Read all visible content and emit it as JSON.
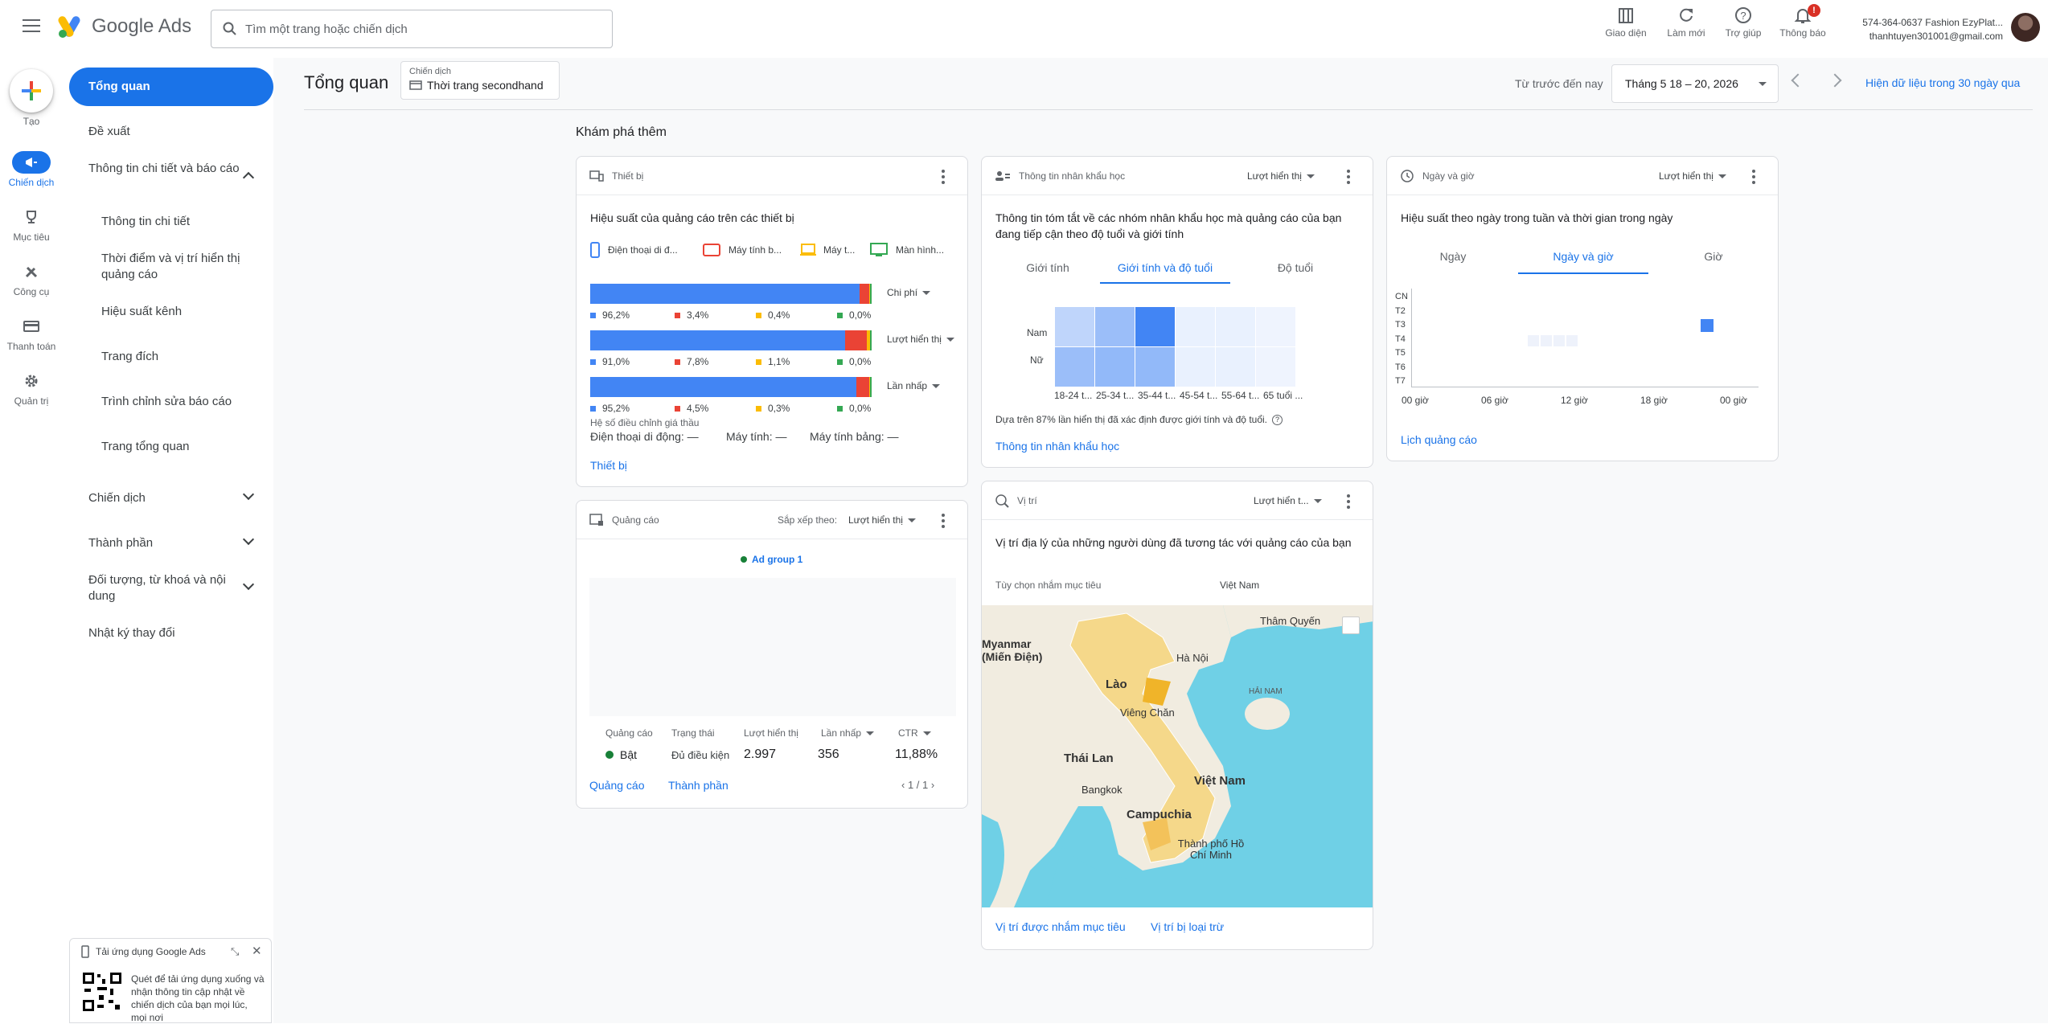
{
  "header": {
    "app_name": "Google Ads",
    "search_placeholder": "Tìm một trang hoặc chiến dịch",
    "actions": [
      {
        "label": "Giao diện",
        "icon": "appearance-icon"
      },
      {
        "label": "Làm mới",
        "icon": "refresh-icon"
      },
      {
        "label": "Trợ giúp",
        "icon": "help-icon"
      },
      {
        "label": "Thông báo",
        "icon": "bell-icon"
      }
    ],
    "notification_badge": "!",
    "account_line1": "574-364-0637 Fashion EzyPlat...",
    "account_line2": "thanhtuyen301001@gmail.com"
  },
  "rail": {
    "create": "Tạo",
    "items": [
      "Chiến dịch",
      "Mục tiêu",
      "Công cụ",
      "Thanh toán",
      "Quản trị"
    ]
  },
  "nav": {
    "overview": "Tổng quan",
    "recommendations": "Đề xuất",
    "insights_group": "Thông tin chi tiết và báo cáo",
    "insights_items": [
      "Thông tin chi tiết",
      "Thời điểm và vị trí hiển thị quảng cáo",
      "Hiệu suất kênh",
      "Trang đích",
      "Trình chỉnh sửa báo cáo",
      "Trang tổng quan"
    ],
    "campaigns": "Chiến dịch",
    "assets": "Thành phần",
    "audiences": "Đối tượng, từ khoá và nội dung",
    "change_history": "Nhật ký thay đổi"
  },
  "page": {
    "title": "Tổng quan",
    "campaign_label": "Chiến dịch",
    "campaign_value": "Thời trang secondhand",
    "date_label": "Từ trước đến nay",
    "date_value": "Tháng 5 18 – 20, 2026",
    "last30": "Hiện dữ liệu trong 30 ngày qua",
    "explore": "Khám phá thêm"
  },
  "device": {
    "title": "Thiết bị",
    "subtitle": "Hiệu suất của quảng cáo trên các thiết bị",
    "legend": [
      "Điện thoại di đ...",
      "Máy tính b...",
      "Máy t...",
      "Màn hình..."
    ],
    "colors": [
      "#4285f4",
      "#ea4335",
      "#fbbc04",
      "#34a853"
    ],
    "metrics": [
      {
        "label": "Chi phí",
        "values": [
          "96,2%",
          "3,4%",
          "0,4%",
          "0,0%"
        ],
        "fractions": [
          0.962,
          0.034,
          0.004,
          0.0
        ]
      },
      {
        "label": "Lượt hiển thị",
        "values": [
          "91,0%",
          "7,8%",
          "1,1%",
          "0,0%"
        ],
        "fractions": [
          0.91,
          0.078,
          0.011,
          0.001
        ]
      },
      {
        "label": "Lần nhấp",
        "values": [
          "95,2%",
          "4,5%",
          "0,3%",
          "0,0%"
        ],
        "fractions": [
          0.952,
          0.045,
          0.003,
          0.0
        ]
      }
    ],
    "adj_title": "Hệ số điều chỉnh giá thầu",
    "adj_mobile": "Điện thoại di động: —",
    "adj_desktop": "Máy tính: —",
    "adj_tablet": "Máy tính bảng: —",
    "link": "Thiết bị"
  },
  "demo": {
    "title": "Thông tin nhân khẩu học",
    "dropdown": "Lượt hiển thị",
    "subtitle": "Thông tin tóm tắt về các nhóm nhân khẩu học mà quảng cáo của bạn đang tiếp cận theo độ tuổi và giới tính",
    "tabs": [
      "Giới tính",
      "Giới tính và độ tuổi",
      "Độ tuổi"
    ],
    "rows": [
      "Nam",
      "Nữ"
    ],
    "cols": [
      "18-24 t...",
      "25-34 t...",
      "35-44 t...",
      "45-54 t...",
      "55-64 t...",
      "65 tuổi ..."
    ],
    "male": [
      0.3,
      0.5,
      1.0,
      0.06,
      0.06,
      0.03
    ],
    "female": [
      0.5,
      0.55,
      0.55,
      0.06,
      0.06,
      0.03
    ],
    "note": "Dựa trên 87% lần hiển thị đã xác định được giới tính và độ tuổi.",
    "link": "Thông tin nhân khẩu học"
  },
  "daytime": {
    "title": "Ngày và giờ",
    "dropdown": "Lượt hiển thị",
    "subtitle": "Hiệu suất theo ngày trong tuần và thời gian trong ngày",
    "tabs": [
      "Ngày",
      "Ngày và giờ",
      "Giờ"
    ],
    "days": [
      "CN",
      "T2",
      "T3",
      "T4",
      "T5",
      "T6",
      "T7"
    ],
    "hours": [
      "00 giờ",
      "06 giờ",
      "12 giờ",
      "18 giờ",
      "00 giờ"
    ],
    "link": "Lịch quảng cáo"
  },
  "ads": {
    "title": "Quảng cáo",
    "sort_label": "Sắp xếp theo:",
    "sort_value": "Lượt hiển thị",
    "group": "Ad group 1",
    "headers": [
      "Quảng cáo",
      "Trạng thái",
      "Lượt hiển thị",
      "Lần nhấp",
      "CTR"
    ],
    "row": [
      "Bật",
      "Đủ điều kiện",
      "2.997",
      "356",
      "11,88%"
    ],
    "pager": "1 / 1",
    "link1": "Quảng cáo",
    "link2": "Thành phần"
  },
  "location": {
    "title": "Vị trí",
    "dropdown": "Lượt hiển t...",
    "subtitle": "Vị trí địa lý của những người dùng đã tương tác với quảng cáo của bạn",
    "target_label": "Tùy chọn nhắm mục tiêu",
    "target_value": "Việt Nam",
    "map_labels": [
      "Myanmar (Miến Điện)",
      "Lào",
      "Hà Nội",
      "Viêng Chăn",
      "Thái Lan",
      "Việt Nam",
      "Bangkok",
      "Campuchia",
      "Thành phố Hồ Chí Minh",
      "Thâm Quyến",
      "HẢI NAM"
    ],
    "link1": "Vị trí được nhắm mục tiêu",
    "link2": "Vị trí bị loại trừ"
  },
  "promo": {
    "title": "Tải ứng dụng Google Ads",
    "text": "Quét để tải ứng dụng xuống và nhận thông tin cập nhật về chiến dịch của bạn mọi lúc, mọi nơi"
  }
}
